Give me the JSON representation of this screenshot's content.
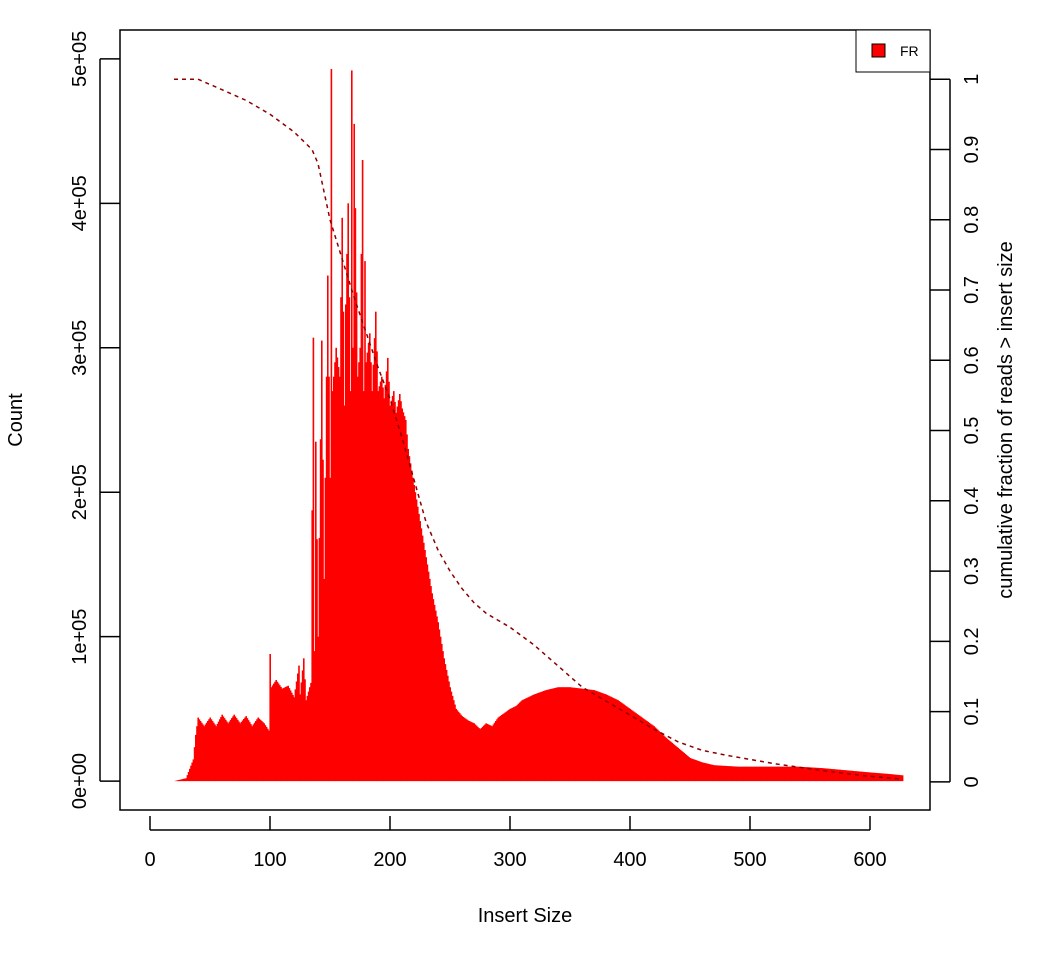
{
  "chart_data": {
    "type": "bar",
    "xlabel": "Insert Size",
    "ylabel": "Count",
    "y2label": "cumulative fraction of reads > insert size",
    "xlim": [
      -25,
      650
    ],
    "ylim": [
      -20000,
      520000
    ],
    "y2lim": [
      -0.04,
      1.07
    ],
    "x_ticks": [
      0,
      100,
      200,
      300,
      400,
      500,
      600
    ],
    "y_ticks": [
      0,
      100000,
      200000,
      300000,
      400000,
      500000
    ],
    "y_tick_labels": [
      "0e+00",
      "1e+05",
      "2e+05",
      "3e+05",
      "4e+05",
      "5e+05"
    ],
    "y2_ticks": [
      0,
      0.1,
      0.2,
      0.3,
      0.4,
      0.5,
      0.6,
      0.7,
      0.8,
      0.9,
      1
    ],
    "y2_tick_labels": [
      "0",
      "0.1",
      "0.2",
      "0.3",
      "0.4",
      "0.5",
      "0.6",
      "0.7",
      "0.8",
      "0.9",
      "1"
    ],
    "legend": {
      "position": "top-right",
      "entries": [
        {
          "label": "FR",
          "color": "#ff0000"
        }
      ]
    },
    "series": [
      {
        "name": "FR",
        "kind": "histogram",
        "color": "#ff0000",
        "x": [
          20,
          30,
          36,
          38,
          40,
          45,
          50,
          55,
          60,
          65,
          70,
          75,
          80,
          85,
          90,
          95,
          99,
          100,
          101,
          105,
          110,
          115,
          120,
          124,
          125,
          128,
          130,
          134,
          136,
          137,
          138,
          140,
          143,
          145,
          148,
          150,
          151,
          152,
          155,
          158,
          160,
          162,
          163,
          165,
          167,
          168,
          169,
          170,
          173,
          175,
          177,
          178,
          179,
          180,
          183,
          185,
          188,
          190,
          193,
          195,
          198,
          200,
          203,
          205,
          208,
          210,
          213,
          215,
          220,
          225,
          230,
          235,
          240,
          245,
          250,
          255,
          260,
          265,
          270,
          275,
          280,
          285,
          290,
          295,
          300,
          305,
          310,
          320,
          330,
          340,
          350,
          360,
          370,
          380,
          390,
          400,
          410,
          420,
          430,
          440,
          450,
          460,
          470,
          480,
          490,
          500,
          520,
          540,
          560,
          580,
          600,
          615,
          627
        ],
        "values": [
          0,
          2000,
          15000,
          32000,
          44000,
          38000,
          44000,
          38000,
          46000,
          40000,
          46000,
          40000,
          45000,
          38000,
          44000,
          40000,
          35000,
          88000,
          65000,
          70000,
          64000,
          66000,
          58000,
          80000,
          60000,
          85000,
          56000,
          68000,
          307000,
          90000,
          235000,
          100000,
          305000,
          140000,
          350000,
          210000,
          493000,
          270000,
          300000,
          280000,
          390000,
          260000,
          330000,
          400000,
          270000,
          492000,
          300000,
          455000,
          280000,
          300000,
          430000,
          270000,
          360000,
          290000,
          310000,
          270000,
          325000,
          270000,
          280000,
          265000,
          293000,
          260000,
          270000,
          255000,
          268000,
          258000,
          250000,
          230000,
          205000,
          180000,
          155000,
          130000,
          110000,
          85000,
          65000,
          50000,
          45000,
          42000,
          40000,
          36000,
          40000,
          38000,
          44000,
          47000,
          50000,
          52000,
          56000,
          60000,
          63000,
          65000,
          65000,
          64000,
          63000,
          60000,
          56000,
          50000,
          44000,
          38000,
          30000,
          23000,
          16000,
          13000,
          11000,
          10500,
          10000,
          10000,
          10000,
          10000,
          9000,
          7500,
          6000,
          5000,
          4000
        ]
      },
      {
        "name": "",
        "kind": "cumulative",
        "axis": "right",
        "color": "#8b0000",
        "x": [
          20,
          40,
          60,
          80,
          100,
          120,
          135,
          140,
          145,
          150,
          160,
          170,
          180,
          190,
          200,
          210,
          220,
          230,
          240,
          250,
          260,
          270,
          280,
          300,
          320,
          340,
          360,
          380,
          400,
          420,
          440,
          460,
          480,
          500,
          520,
          540,
          560,
          580,
          600,
          627
        ],
        "values": [
          1.0,
          1.0,
          0.985,
          0.97,
          0.95,
          0.925,
          0.9,
          0.88,
          0.84,
          0.8,
          0.745,
          0.69,
          0.64,
          0.59,
          0.545,
          0.49,
          0.43,
          0.37,
          0.33,
          0.3,
          0.275,
          0.255,
          0.24,
          0.22,
          0.195,
          0.165,
          0.135,
          0.115,
          0.095,
          0.075,
          0.057,
          0.045,
          0.038,
          0.032,
          0.026,
          0.021,
          0.016,
          0.012,
          0.008,
          0.004
        ]
      }
    ]
  }
}
